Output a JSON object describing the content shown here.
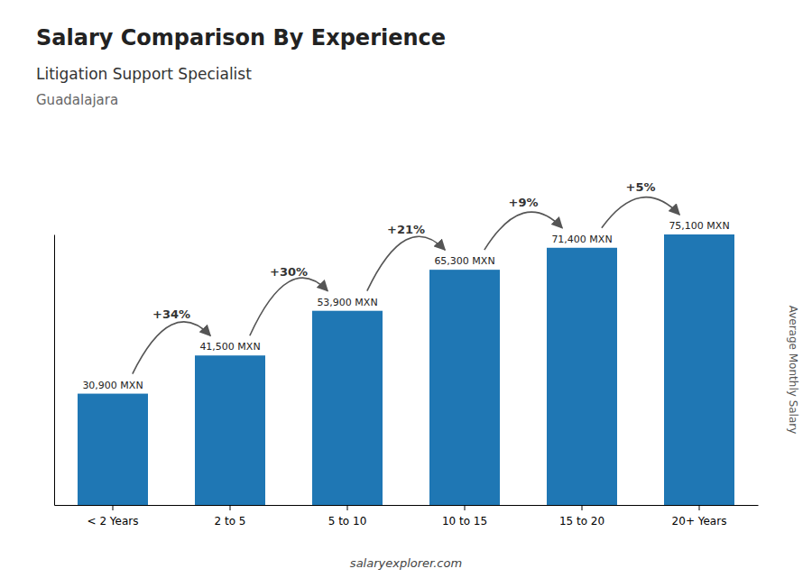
{
  "chart_data": {
    "type": "bar",
    "title": "Salary Comparison By Experience",
    "subtitle": [
      "Litigation Support Specialist",
      "Guadalajara"
    ],
    "ylabel": "Average Monthly Salary",
    "categories": [
      "< 2 Years",
      "2 to 5",
      "5 to 10",
      "10 to 15",
      "15 to 20",
      "20+ Years"
    ],
    "values": [
      30900,
      41500,
      53900,
      65300,
      71400,
      75100
    ],
    "value_labels": [
      "30,900 MXN",
      "41,500 MXN",
      "53,900 MXN",
      "65,300 MXN",
      "71,400 MXN",
      "75,100 MXN"
    ],
    "data_labels": true,
    "ylim": [
      0,
      75100
    ],
    "tick_labels": "x",
    "annotations": [
      {
        "text": "+34%",
        "from": "< 2 Years",
        "to": "2 to 5"
      },
      {
        "text": "+30%",
        "from": "2 to 5",
        "to": "5 to 10"
      },
      {
        "text": "+21%",
        "from": "5 to 10",
        "to": "10 to 15"
      },
      {
        "text": "+9%",
        "from": "10 to 15",
        "to": "15 to 20"
      },
      {
        "text": "+5%",
        "from": "15 to 20",
        "to": "20+ Years"
      },
      {
        "text": "salaryexplorer.com"
      }
    ]
  }
}
